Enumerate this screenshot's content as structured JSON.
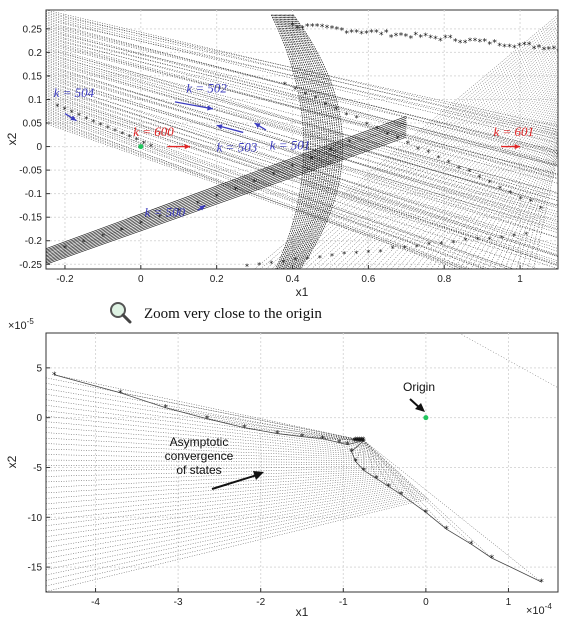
{
  "chart_data": [
    {
      "type": "scatter",
      "panel": "top",
      "xlabel": "x1",
      "ylabel": "x2",
      "xlim": [
        -0.25,
        1.1
      ],
      "ylim": [
        -0.26,
        0.29
      ],
      "xticks": [
        "-0.2",
        "0",
        "0.2",
        "0.4",
        "0.6",
        "0.8",
        "1"
      ],
      "xtick_values": [
        -0.2,
        0,
        0.2,
        0.4,
        0.6,
        0.8,
        1.0
      ],
      "yticks": [
        "0.25",
        "0.2",
        "0.15",
        "0.1",
        "0.05",
        "0",
        "-0.05",
        "-0.1",
        "-0.15",
        "-0.2",
        "-0.25"
      ],
      "ytick_values": [
        0.25,
        0.2,
        0.15,
        0.1,
        0.05,
        0,
        -0.05,
        -0.1,
        -0.15,
        -0.2,
        -0.25
      ],
      "grid": true,
      "origin_point": {
        "x": 0.0,
        "y": 0.0,
        "color": "#22c55e"
      },
      "annotations": [
        {
          "text": "k = 504",
          "x": -0.23,
          "y": 0.105,
          "color": "#3b3bbf"
        },
        {
          "text": "k = 502",
          "x": 0.12,
          "y": 0.115,
          "color": "#3b3bbf"
        },
        {
          "text": "k = 600",
          "x": -0.02,
          "y": 0.022,
          "color": "#e02424"
        },
        {
          "text": "k = 503",
          "x": 0.2,
          "y": -0.01,
          "color": "#3b3bbf"
        },
        {
          "text": "k = 501",
          "x": 0.34,
          "y": -0.006,
          "color": "#3b3bbf"
        },
        {
          "text": "k = 601",
          "x": 0.93,
          "y": 0.022,
          "color": "#e02424"
        },
        {
          "text": "k = 500",
          "x": 0.01,
          "y": -0.148,
          "color": "#3b3bbf"
        }
      ]
    },
    {
      "type": "scatter",
      "panel": "bottom",
      "xlabel": "x1",
      "ylabel": "x2",
      "x_multiplier": "×10",
      "x_multiplier_exp": "-4",
      "y_multiplier": "×10",
      "y_multiplier_exp": "-5",
      "xlim": [
        -4.6,
        1.6
      ],
      "ylim": [
        -17.5,
        8.5
      ],
      "xticks": [
        "-4",
        "-3",
        "-2",
        "-1",
        "0",
        "1"
      ],
      "xtick_values": [
        -4,
        -3,
        -2,
        -1,
        0,
        1
      ],
      "yticks": [
        "5",
        "0",
        "-5",
        "-10",
        "-15"
      ],
      "ytick_values": [
        5,
        0,
        -5,
        -10,
        -15
      ],
      "grid": true,
      "origin_point": {
        "x": 0.0,
        "y": 0.0,
        "color": "#22c55e"
      },
      "boundary_upper": [
        {
          "x": -4.5,
          "y": 4.3
        },
        {
          "x": -3.7,
          "y": 2.5
        },
        {
          "x": -3.15,
          "y": 1.0
        },
        {
          "x": -2.65,
          "y": -0.1
        },
        {
          "x": -2.2,
          "y": -1.0
        },
        {
          "x": -1.8,
          "y": -1.6
        },
        {
          "x": -1.5,
          "y": -1.9
        },
        {
          "x": -1.25,
          "y": -2.1
        },
        {
          "x": -1.05,
          "y": -2.5
        },
        {
          "x": -0.95,
          "y": -2.7
        }
      ],
      "boundary_lower": [
        {
          "x": -0.9,
          "y": -3.4
        },
        {
          "x": -0.85,
          "y": -4.4
        },
        {
          "x": -0.75,
          "y": -5.3
        },
        {
          "x": -0.6,
          "y": -6.1
        },
        {
          "x": -0.45,
          "y": -6.9
        },
        {
          "x": -0.3,
          "y": -7.7
        },
        {
          "x": 0.0,
          "y": -9.5
        },
        {
          "x": 0.25,
          "y": -11.2
        },
        {
          "x": 0.55,
          "y": -12.7
        },
        {
          "x": 0.8,
          "y": -14.1
        },
        {
          "x": 1.4,
          "y": -16.5
        }
      ],
      "cusp": {
        "x": -0.75,
        "y": -2.3
      }
    }
  ],
  "figure": {
    "zoom_text": "Zoom very close to the origin",
    "zoom_icon": "magnifier-icon",
    "note_origin": "Origin",
    "note_conv_lines": [
      "Asymptotic",
      "convergence",
      "of states"
    ]
  }
}
